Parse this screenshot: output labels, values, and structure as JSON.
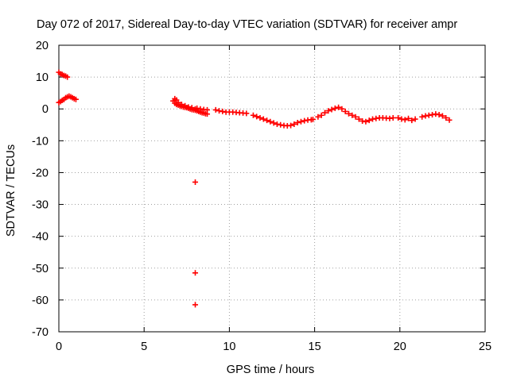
{
  "chart_data": {
    "type": "scatter",
    "title": "Day 072 of 2017, Sidereal Day-to-day VTEC variation (SDTVAR) for receiver ampr",
    "xlabel": "GPS time / hours",
    "ylabel": "SDTVAR / TECUs",
    "xlim": [
      0,
      25
    ],
    "ylim": [
      -70,
      20
    ],
    "xticks": [
      0,
      5,
      10,
      15,
      20,
      25
    ],
    "yticks": [
      20,
      10,
      0,
      -10,
      -20,
      -30,
      -40,
      -50,
      -60,
      -70
    ],
    "grid": true,
    "marker": "+",
    "color": "#ff0000",
    "series": [
      {
        "name": "SDTVAR",
        "points": [
          [
            0.0,
            11.5
          ],
          [
            0.1,
            11.0
          ],
          [
            0.2,
            10.8
          ],
          [
            0.3,
            10.5
          ],
          [
            0.4,
            10.3
          ],
          [
            0.5,
            10.0
          ],
          [
            0.0,
            2.0
          ],
          [
            0.1,
            2.3
          ],
          [
            0.2,
            2.7
          ],
          [
            0.3,
            3.0
          ],
          [
            0.4,
            3.5
          ],
          [
            0.5,
            3.8
          ],
          [
            0.6,
            4.0
          ],
          [
            0.7,
            3.8
          ],
          [
            0.8,
            3.5
          ],
          [
            0.9,
            3.2
          ],
          [
            1.0,
            3.0
          ],
          [
            6.7,
            2.5
          ],
          [
            6.8,
            1.8
          ],
          [
            6.9,
            1.4
          ],
          [
            7.0,
            1.2
          ],
          [
            7.1,
            1.0
          ],
          [
            7.2,
            0.8
          ],
          [
            7.3,
            0.6
          ],
          [
            7.4,
            0.5
          ],
          [
            7.5,
            0.4
          ],
          [
            7.6,
            0.2
          ],
          [
            7.7,
            0.0
          ],
          [
            7.8,
            -0.2
          ],
          [
            7.9,
            -0.3
          ],
          [
            8.0,
            -0.4
          ],
          [
            6.8,
            3.2
          ],
          [
            6.9,
            2.8
          ],
          [
            7.0,
            2.0
          ],
          [
            7.2,
            1.4
          ],
          [
            7.4,
            1.0
          ],
          [
            7.6,
            0.6
          ],
          [
            7.8,
            0.4
          ],
          [
            8.0,
            0.0
          ],
          [
            8.1,
            -0.6
          ],
          [
            8.2,
            -0.8
          ],
          [
            8.3,
            -1.0
          ],
          [
            8.4,
            -1.2
          ],
          [
            8.5,
            -1.3
          ],
          [
            8.6,
            -1.5
          ],
          [
            8.7,
            -1.6
          ],
          [
            8.1,
            0.2
          ],
          [
            8.3,
            0.0
          ],
          [
            8.5,
            -0.2
          ],
          [
            8.7,
            -0.3
          ],
          [
            9.2,
            -0.3
          ],
          [
            9.4,
            -0.6
          ],
          [
            9.6,
            -0.8
          ],
          [
            9.8,
            -1.0
          ],
          [
            10.0,
            -1.0
          ],
          [
            10.2,
            -1.0
          ],
          [
            10.4,
            -1.1
          ],
          [
            10.6,
            -1.2
          ],
          [
            10.8,
            -1.3
          ],
          [
            11.0,
            -1.4
          ],
          [
            11.4,
            -2.0
          ],
          [
            11.6,
            -2.4
          ],
          [
            11.8,
            -2.8
          ],
          [
            12.0,
            -3.2
          ],
          [
            12.2,
            -3.6
          ],
          [
            12.4,
            -4.0
          ],
          [
            12.6,
            -4.4
          ],
          [
            12.8,
            -4.8
          ],
          [
            13.0,
            -5.0
          ],
          [
            13.2,
            -5.2
          ],
          [
            13.4,
            -5.3
          ],
          [
            13.6,
            -5.2
          ],
          [
            13.8,
            -4.8
          ],
          [
            14.0,
            -4.3
          ],
          [
            14.2,
            -4.0
          ],
          [
            14.4,
            -3.7
          ],
          [
            14.6,
            -3.5
          ],
          [
            14.8,
            -3.4
          ],
          [
            14.9,
            -3.3
          ],
          [
            15.2,
            -2.5
          ],
          [
            15.4,
            -2.0
          ],
          [
            15.6,
            -1.2
          ],
          [
            15.8,
            -0.6
          ],
          [
            16.0,
            -0.2
          ],
          [
            16.2,
            0.2
          ],
          [
            16.4,
            0.5
          ],
          [
            16.6,
            0.0
          ],
          [
            16.8,
            -0.8
          ],
          [
            17.0,
            -1.5
          ],
          [
            17.2,
            -2.0
          ],
          [
            17.4,
            -2.5
          ],
          [
            17.6,
            -3.2
          ],
          [
            17.8,
            -3.8
          ],
          [
            18.0,
            -4.0
          ],
          [
            18.2,
            -3.6
          ],
          [
            18.4,
            -3.2
          ],
          [
            18.6,
            -3.0
          ],
          [
            18.8,
            -2.8
          ],
          [
            19.0,
            -2.8
          ],
          [
            19.2,
            -2.9
          ],
          [
            19.4,
            -3.0
          ],
          [
            19.6,
            -2.8
          ],
          [
            19.9,
            -2.8
          ],
          [
            20.1,
            -3.2
          ],
          [
            20.3,
            -3.4
          ],
          [
            20.5,
            -3.0
          ],
          [
            20.7,
            -3.6
          ],
          [
            20.9,
            -3.2
          ],
          [
            21.3,
            -2.5
          ],
          [
            21.5,
            -2.2
          ],
          [
            21.7,
            -2.0
          ],
          [
            21.9,
            -1.8
          ],
          [
            22.1,
            -1.6
          ],
          [
            22.3,
            -1.8
          ],
          [
            22.5,
            -2.2
          ],
          [
            22.7,
            -2.8
          ],
          [
            22.9,
            -3.5
          ],
          [
            8.0,
            -23.0
          ],
          [
            8.0,
            -51.5
          ],
          [
            8.0,
            -61.5
          ]
        ]
      }
    ]
  }
}
